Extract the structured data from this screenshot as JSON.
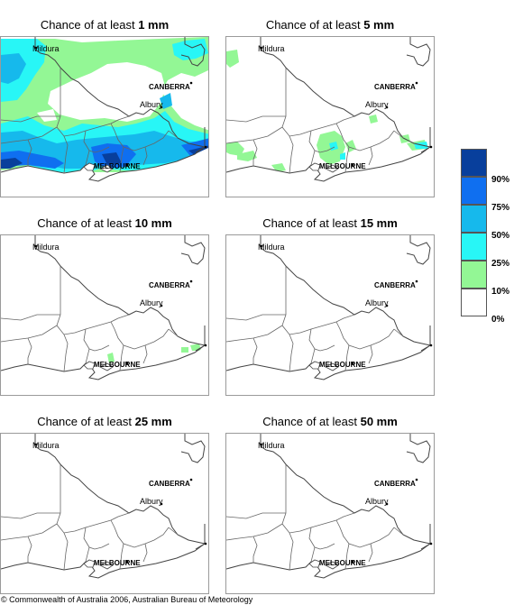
{
  "panels": [
    {
      "prefix": "Chance of at least ",
      "amount": "1 mm",
      "level": 1
    },
    {
      "prefix": "Chance of at least ",
      "amount": "5 mm",
      "level": 2
    },
    {
      "prefix": "Chance of at least ",
      "amount": "10 mm",
      "level": 3
    },
    {
      "prefix": "Chance of at least ",
      "amount": "15 mm",
      "level": 4
    },
    {
      "prefix": "Chance of at least ",
      "amount": "25 mm",
      "level": 4
    },
    {
      "prefix": "Chance of at least ",
      "amount": "50 mm",
      "level": 4
    }
  ],
  "map_labels": {
    "mildura": "Mildura",
    "canberra": "CANBERRA",
    "albury": "Albury",
    "melbourne": "MELBOURNE"
  },
  "legend": {
    "colors": [
      "#083f9c",
      "#0f6ff0",
      "#16b9ec",
      "#28f6f6",
      "#93f795",
      "#ffffff"
    ],
    "labels": [
      "90%",
      "75%",
      "50%",
      "25%",
      "10%",
      "0%"
    ]
  },
  "copyright": "© Commonwealth of Australia 2006, Australian Bureau of Meteorology"
}
